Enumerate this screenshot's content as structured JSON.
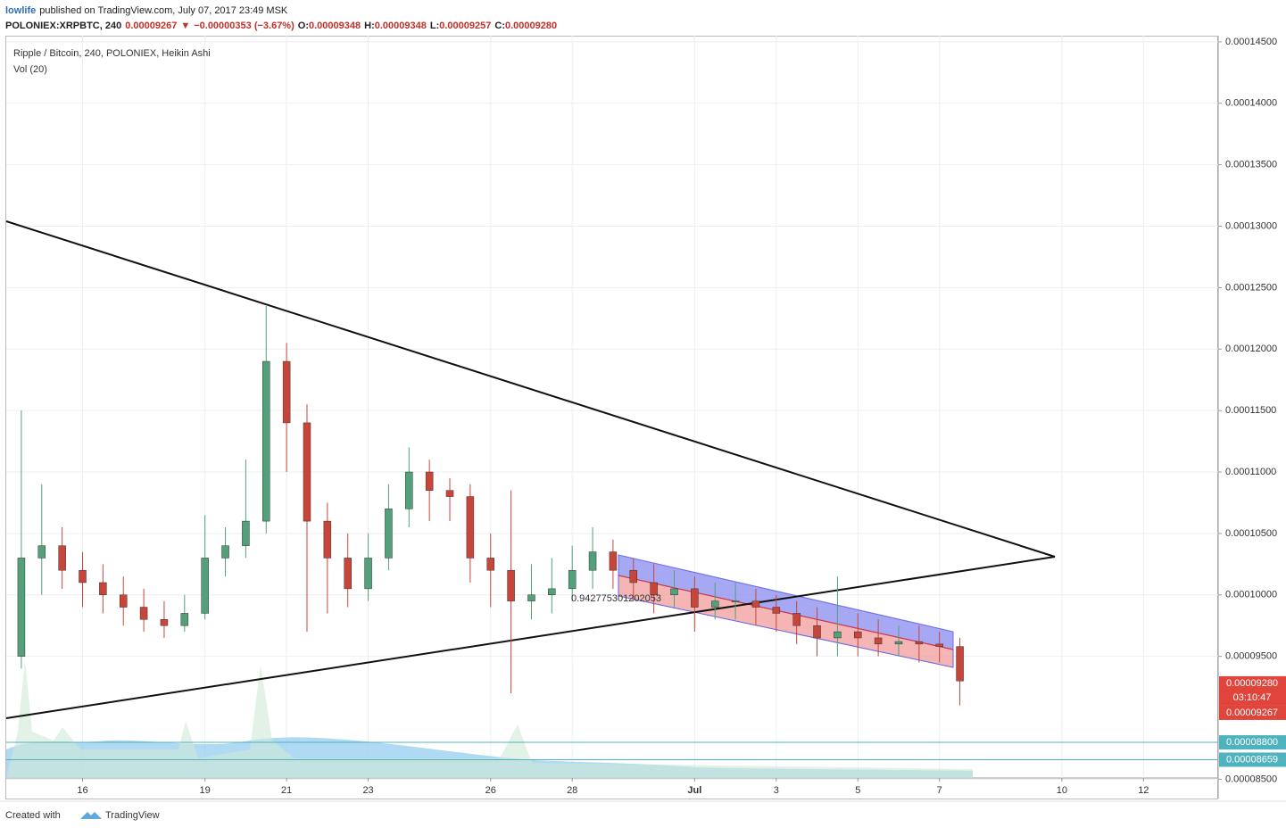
{
  "header": {
    "author": "lowlife",
    "published": "published on TradingView.com, July 07, 2017 23:49 MSK",
    "symbol": "POLONIEX:XRPBTC, 240",
    "price": "0.00009267",
    "change_arrow": "▼",
    "change": "−0.00000353 (−3.67%)",
    "o_label": "O:",
    "o": "0.00009348",
    "h_label": "H:",
    "h": "0.00009348",
    "l_label": "L:",
    "l": "0.00009257",
    "c_label": "C:",
    "c": "0.00009280"
  },
  "footer": {
    "created": "Created with",
    "brand": "TradingView"
  },
  "chart_data": {
    "type": "candlestick",
    "title": "Ripple / Bitcoin, 240, POLONIEX, Heikin Ashi",
    "subtitle": "Vol (20)",
    "annotation": "0.942775301202053",
    "up_color": "#53a07a",
    "down_color": "#c8453a",
    "x": [
      14.5,
      15,
      15.5,
      16,
      16.5,
      17,
      17.5,
      18,
      18.5,
      19,
      19.5,
      20,
      20.5,
      21,
      21.5,
      22,
      22.5,
      23,
      23.5,
      24,
      24.5,
      25,
      25.5,
      26,
      26.5,
      27,
      27.5,
      28,
      28.5,
      29,
      29.5,
      30,
      30.5,
      31,
      31.5,
      32,
      32.5,
      33,
      33.5,
      34,
      34.5,
      35,
      35.5,
      36,
      36.5,
      37,
      37.5
    ],
    "open": [
      9.5e-05,
      0.000103,
      0.000104,
      0.000102,
      0.000101,
      0.0001,
      9.9e-05,
      9.8e-05,
      9.75e-05,
      9.85e-05,
      0.000103,
      0.000104,
      0.000106,
      0.000119,
      0.000114,
      0.000106,
      0.000103,
      0.0001005,
      0.000103,
      0.000107,
      0.00011,
      0.0001085,
      0.000108,
      0.000103,
      0.000102,
      9.95e-05,
      0.0001,
      0.0001005,
      0.000102,
      0.0001035,
      0.000102,
      0.000101,
      0.0001,
      0.0001005,
      9.9e-05,
      9.95e-05,
      9.95e-05,
      9.9e-05,
      9.85e-05,
      9.75e-05,
      9.65e-05,
      9.7e-05,
      9.65e-05,
      9.6e-05,
      9.62e-05,
      9.6e-05,
      9.58e-05
    ],
    "close": [
      0.000103,
      0.000104,
      0.000102,
      0.000101,
      0.0001,
      9.9e-05,
      9.8e-05,
      9.75e-05,
      9.85e-05,
      0.000103,
      0.000104,
      0.000106,
      0.000119,
      0.000114,
      0.000106,
      0.000103,
      0.0001005,
      0.000103,
      0.000107,
      0.00011,
      0.0001085,
      0.000108,
      0.000103,
      0.000102,
      9.95e-05,
      0.0001,
      0.0001005,
      0.000102,
      0.0001035,
      0.000102,
      0.000101,
      0.0001,
      0.0001005,
      9.9e-05,
      9.95e-05,
      9.95e-05,
      9.9e-05,
      9.85e-05,
      9.75e-05,
      9.65e-05,
      9.7e-05,
      9.65e-05,
      9.6e-05,
      9.62e-05,
      9.6e-05,
      9.58e-05,
      9.3e-05
    ],
    "high": [
      0.000115,
      0.000109,
      0.0001055,
      0.0001035,
      0.0001025,
      0.0001015,
      0.0001005,
      9.95e-05,
      0.0001,
      0.0001065,
      0.0001055,
      0.000111,
      0.0001235,
      0.0001205,
      0.0001155,
      0.0001075,
      0.000105,
      0.000105,
      0.000109,
      0.000112,
      0.000111,
      0.0001095,
      0.000109,
      0.000105,
      0.0001085,
      0.0001025,
      0.000103,
      0.000104,
      0.0001055,
      0.0001045,
      0.000103,
      0.0001025,
      0.000102,
      0.0001015,
      0.000101,
      0.000101,
      0.0001005,
      0.0001,
      9.95e-05,
      9.9e-05,
      0.0001015,
      9.85e-05,
      9.8e-05,
      9.75e-05,
      9.75e-05,
      9.7e-05,
      9.65e-05
    ],
    "low": [
      9.4e-05,
      0.0001,
      0.0001005,
      9.9e-05,
      9.85e-05,
      9.75e-05,
      9.7e-05,
      9.65e-05,
      9.7e-05,
      9.8e-05,
      0.0001015,
      0.000103,
      0.000105,
      0.00011,
      9.7e-05,
      9.85e-05,
      9.9e-05,
      9.95e-05,
      0.000102,
      0.0001055,
      0.000106,
      0.000106,
      0.000101,
      9.9e-05,
      9.2e-05,
      9.8e-05,
      9.85e-05,
      9.95e-05,
      0.0001005,
      0.0001005,
      9.95e-05,
      9.85e-05,
      9.9e-05,
      9.7e-05,
      9.8e-05,
      9.8e-05,
      9.75e-05,
      9.7e-05,
      9.6e-05,
      9.5e-05,
      9.5e-05,
      9.5e-05,
      9.5e-05,
      9.5e-05,
      9.45e-05,
      9.45e-05,
      9.1e-05
    ],
    "xlim": [
      14.13,
      43.83
    ],
    "xticks": [
      16,
      19,
      21,
      23,
      26,
      28,
      {
        "value": 31,
        "label": "Jul"
      },
      {
        "value": 33,
        "label": "3"
      },
      {
        "value": 35,
        "label": "5"
      },
      {
        "value": 37,
        "label": "7"
      },
      {
        "value": 40,
        "label": "10"
      },
      {
        "value": 42,
        "label": "12"
      }
    ],
    "ylim": [
      8.51e-05,
      0.0001455
    ],
    "yticks": [
      {
        "value": 0.000145,
        "label": "0.00014500"
      },
      {
        "value": 0.00014,
        "label": "0.00014000"
      },
      {
        "value": 0.000135,
        "label": "0.00013500"
      },
      {
        "value": 0.00013,
        "label": "0.00013000"
      },
      {
        "value": 0.000125,
        "label": "0.00012500"
      },
      {
        "value": 0.00012,
        "label": "0.00012000"
      },
      {
        "value": 0.000115,
        "label": "0.00011500"
      },
      {
        "value": 0.00011,
        "label": "0.00011000"
      },
      {
        "value": 0.000105,
        "label": "0.00010500"
      },
      {
        "value": 0.0001,
        "label": "0.00010000"
      },
      {
        "value": 9.5e-05,
        "label": "0.00009500"
      },
      {
        "value": 8.5e-05,
        "label": "0.00008500"
      }
    ],
    "grid": true,
    "last_price": {
      "value": 9.28e-05,
      "label": "0.00009280",
      "countdown": "03:10:47",
      "color": "#e0443a"
    },
    "price_lines": [
      {
        "value": 9.267e-05,
        "label": "0.00009267",
        "color": "#e0443a"
      },
      {
        "value": 8.8e-05,
        "label": "0.00008800",
        "color": "#4fb3bf"
      },
      {
        "value": 8.659e-05,
        "label": "0.00008659",
        "color": "#4fb3bf"
      }
    ]
  }
}
